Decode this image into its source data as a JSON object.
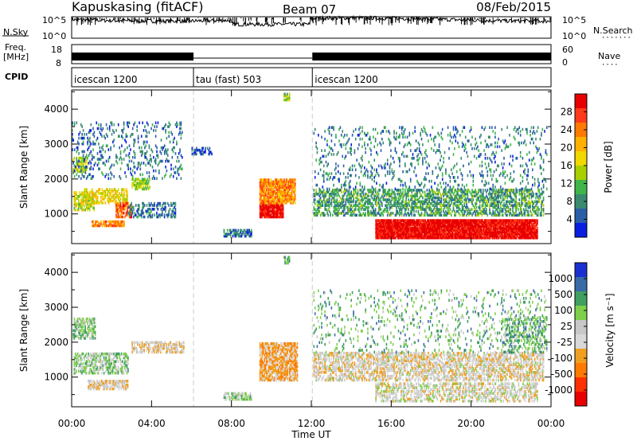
{
  "header": {
    "station": "Kapuskasing (fitACF)",
    "beam": "Beam 07",
    "date": "08/Feb/2015"
  },
  "aux_panels": {
    "nsky_label": "N.Sky",
    "nsearch_label": "N.Search",
    "nsky_ticks": [
      "10^5",
      "10^0"
    ],
    "nsearch_ticks": [
      "10^5",
      "10^0"
    ],
    "freq_label_line1": "Freq.",
    "freq_label_line2": "[MHz]",
    "freq_ticks": [
      "18",
      "8"
    ],
    "nave_label": "Nave",
    "nave_ticks": [
      "60",
      "0"
    ],
    "cpid_label": "CPID",
    "cpid_segments": [
      {
        "label": "icescan 1200",
        "start_h": 0,
        "end_h": 6.1
      },
      {
        "label": "tau (fast) 503",
        "start_h": 6.1,
        "end_h": 12.05
      },
      {
        "label": "icescan 1200",
        "start_h": 12.05,
        "end_h": 24
      }
    ],
    "freq_gap_hours": [
      6.1,
      12.05
    ]
  },
  "chart_data": [
    {
      "type": "heatmap",
      "name": "power-panel",
      "ylabel": "Slant Range [km]",
      "xlabel": "",
      "xlim": [
        0,
        24
      ],
      "ylim": [
        150,
        4550
      ],
      "xticks_hours": [
        0,
        4,
        8,
        12,
        16,
        20,
        24
      ],
      "yticks": [
        1000,
        2000,
        3000,
        4000
      ],
      "colorbar_label": "Power [dB]",
      "colorbar_ticks": [
        "28",
        "24",
        "20",
        "16",
        "12",
        "8",
        "4"
      ],
      "colorbar_colors": [
        "#e80000",
        "#ff3a1a",
        "#ff7a00",
        "#ffb000",
        "#f0d800",
        "#a8d000",
        "#3fb54a",
        "#3a8a70",
        "#2a5fa8",
        "#0a1ee0"
      ],
      "regions": [
        {
          "t0": 0.05,
          "t1": 0.8,
          "r0": 2200,
          "r1": 2600,
          "v": 0.45,
          "d": 0.6
        },
        {
          "t0": 0.1,
          "t1": 1.1,
          "r0": 1100,
          "r1": 1600,
          "v": 0.5,
          "d": 0.65
        },
        {
          "t0": 0.5,
          "t1": 2.8,
          "r0": 1300,
          "r1": 1700,
          "v": 0.55,
          "d": 0.6
        },
        {
          "t0": 1.0,
          "t1": 2.6,
          "r0": 650,
          "r1": 800,
          "v": 0.75,
          "d": 0.8
        },
        {
          "t0": 2.2,
          "t1": 3.0,
          "r0": 900,
          "r1": 1300,
          "v": 0.8,
          "d": 0.7
        },
        {
          "t0": 3.0,
          "t1": 3.9,
          "r0": 1700,
          "r1": 2000,
          "v": 0.45,
          "d": 0.6
        },
        {
          "t0": 2.8,
          "t1": 5.2,
          "r0": 900,
          "r1": 1300,
          "v": 0.2,
          "d": 0.4
        },
        {
          "t0": 7.6,
          "t1": 9.0,
          "r0": 350,
          "r1": 550,
          "v": 0.2,
          "d": 0.6
        },
        {
          "t0": 9.4,
          "t1": 10.6,
          "r0": 900,
          "r1": 1300,
          "v": 0.95,
          "d": 0.95
        },
        {
          "t0": 9.4,
          "t1": 11.2,
          "r0": 1300,
          "r1": 2000,
          "v": 0.72,
          "d": 0.85
        },
        {
          "t0": 12.1,
          "t1": 23.6,
          "r0": 950,
          "r1": 1700,
          "v": 0.3,
          "d": 0.55
        },
        {
          "t0": 15.2,
          "t1": 23.3,
          "r0": 300,
          "r1": 850,
          "v": 0.97,
          "d": 0.97
        },
        {
          "t0": 12.1,
          "t1": 23.8,
          "r0": 1700,
          "r1": 3500,
          "v": 0.22,
          "d": 0.12
        },
        {
          "t0": 0.0,
          "t1": 5.5,
          "r0": 2000,
          "r1": 3600,
          "v": 0.2,
          "d": 0.15
        },
        {
          "t0": 6.0,
          "t1": 7.0,
          "r0": 2700,
          "r1": 2900,
          "v": 0.1,
          "d": 0.5
        },
        {
          "t0": 10.6,
          "t1": 10.9,
          "r0": 4250,
          "r1": 4450,
          "v": 0.4,
          "d": 0.7
        }
      ]
    },
    {
      "type": "heatmap",
      "name": "velocity-panel",
      "ylabel": "Slant Range [km]",
      "xlabel": "Time UT",
      "xlim": [
        0,
        24
      ],
      "ylim": [
        150,
        4550
      ],
      "xticks_hours": [
        0,
        4,
        8,
        12,
        16,
        20,
        24
      ],
      "xtick_labels": [
        "00:00",
        "04:00",
        "08:00",
        "12:00",
        "16:00",
        "20:00",
        "00:00"
      ],
      "yticks": [
        1000,
        2000,
        3000,
        4000
      ],
      "colorbar_label": "Velocity [m s⁻¹]",
      "colorbar_ticks": [
        "1000",
        "500",
        "100",
        "25",
        "-25",
        "-100",
        "-500",
        "-1000"
      ],
      "colorbar_colors": [
        "#1a2fd0",
        "#3a6aa8",
        "#3fa060",
        "#7ed04a",
        "#c8c8c8",
        "#d8d8d8",
        "#f0a020",
        "#ff7a00",
        "#ff3000",
        "#e80000"
      ],
      "regions": [
        {
          "t0": 0.05,
          "t1": 1.2,
          "r0": 2100,
          "r1": 2700,
          "v": 0.65,
          "d": 0.6
        },
        {
          "t0": 0.1,
          "t1": 2.8,
          "r0": 1100,
          "r1": 1700,
          "v": 0.62,
          "d": 0.55
        },
        {
          "t0": 0.8,
          "t1": 2.8,
          "r0": 650,
          "r1": 900,
          "v": 0.45,
          "d": 0.7
        },
        {
          "t0": 3.0,
          "t1": 5.6,
          "r0": 1700,
          "r1": 2000,
          "v": 0.45,
          "d": 0.6
        },
        {
          "t0": 7.6,
          "t1": 9.0,
          "r0": 350,
          "r1": 550,
          "v": 0.6,
          "d": 0.6
        },
        {
          "t0": 9.4,
          "t1": 11.3,
          "r0": 900,
          "r1": 2000,
          "v": 0.35,
          "d": 0.8
        },
        {
          "t0": 12.1,
          "t1": 23.6,
          "r0": 900,
          "r1": 1700,
          "v": 0.47,
          "d": 0.6
        },
        {
          "t0": 15.2,
          "t1": 23.3,
          "r0": 300,
          "r1": 850,
          "v": 0.5,
          "d": 0.5
        },
        {
          "t0": 12.1,
          "t1": 23.8,
          "r0": 1700,
          "r1": 3500,
          "v": 0.7,
          "d": 0.1
        },
        {
          "t0": 21.5,
          "t1": 23.8,
          "r0": 1700,
          "r1": 2700,
          "v": 0.7,
          "d": 0.35
        },
        {
          "t0": 10.6,
          "t1": 10.9,
          "r0": 4250,
          "r1": 4450,
          "v": 0.75,
          "d": 0.7
        }
      ]
    }
  ]
}
